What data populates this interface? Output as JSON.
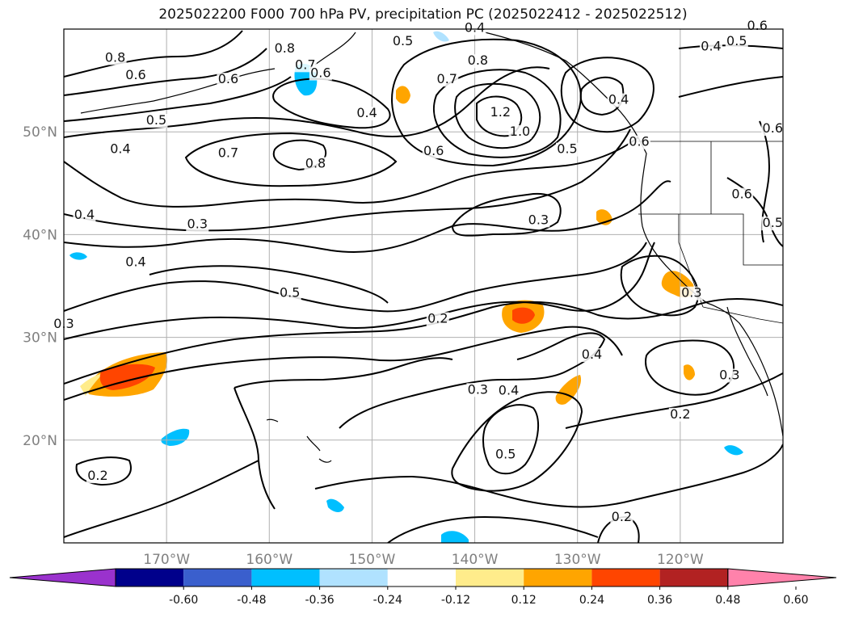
{
  "title": "2025022200 F000 700 hPa PV, precipitation PC (2025022412 - 2025022512)",
  "colors": {
    "contour": "#000000",
    "grid": "#b0b0b0",
    "axis_label": "#808080"
  },
  "chart_data": {
    "type": "contour-map",
    "title": "2025022200 F000 700 hPa PV, precipitation PC (2025022412 - 2025022512)",
    "projection": "PlateCarree",
    "extent": {
      "lon": [
        -180,
        -110
      ],
      "lat": [
        10,
        60
      ]
    },
    "lat_ticks": [
      20,
      30,
      40,
      50
    ],
    "lat_labels": [
      "20°N",
      "30°N",
      "40°N",
      "50°N"
    ],
    "lon_ticks": [
      -170,
      -160,
      -150,
      -140,
      -130,
      -120
    ],
    "lon_labels": [
      "170°W",
      "160°W",
      "150°W",
      "140°W",
      "130°W",
      "120°W"
    ],
    "grid": true,
    "contour_field": "700 hPa PV",
    "contour_labels": [
      {
        "text": "0.8",
        "lon": -175.0,
        "lat": 56.9
      },
      {
        "text": "0.6",
        "lon": -173.0,
        "lat": 55.2
      },
      {
        "text": "0.6",
        "lon": -164.0,
        "lat": 54.8
      },
      {
        "text": "0.8",
        "lon": -158.5,
        "lat": 57.8
      },
      {
        "text": "0.7",
        "lon": -156.5,
        "lat": 56.2
      },
      {
        "text": "0.6",
        "lon": -155.0,
        "lat": 55.4
      },
      {
        "text": "0.4",
        "lon": -150.5,
        "lat": 51.5
      },
      {
        "text": "0.5",
        "lon": -171.0,
        "lat": 50.8
      },
      {
        "text": "0.4",
        "lon": -174.5,
        "lat": 48.0
      },
      {
        "text": "0.7",
        "lon": -164.0,
        "lat": 47.6
      },
      {
        "text": "0.8",
        "lon": -155.5,
        "lat": 46.6
      },
      {
        "text": "0.5",
        "lon": -147.0,
        "lat": 58.5
      },
      {
        "text": "0.4",
        "lon": -140.0,
        "lat": 59.8
      },
      {
        "text": "0.7",
        "lon": -142.7,
        "lat": 54.8
      },
      {
        "text": "0.8",
        "lon": -139.7,
        "lat": 56.6
      },
      {
        "text": "1.2",
        "lon": -137.5,
        "lat": 51.6
      },
      {
        "text": "1.0",
        "lon": -135.6,
        "lat": 49.7
      },
      {
        "text": "0.6",
        "lon": -144.0,
        "lat": 47.8
      },
      {
        "text": "0.5",
        "lon": -131.0,
        "lat": 48.0
      },
      {
        "text": "0.4",
        "lon": -126.0,
        "lat": 52.8
      },
      {
        "text": "0.6",
        "lon": -124.0,
        "lat": 48.7
      },
      {
        "text": "0.4",
        "lon": -117.0,
        "lat": 58.0
      },
      {
        "text": "0.5",
        "lon": -114.5,
        "lat": 58.5
      },
      {
        "text": "0.6",
        "lon": -112.5,
        "lat": 60.0
      },
      {
        "text": "0.6",
        "lon": -111.0,
        "lat": 50.0
      },
      {
        "text": "0.6",
        "lon": -114.0,
        "lat": 43.6
      },
      {
        "text": "0.5",
        "lon": -111.0,
        "lat": 40.8
      },
      {
        "text": "0.4",
        "lon": -178.0,
        "lat": 41.6
      },
      {
        "text": "0.3",
        "lon": -167.0,
        "lat": 40.7
      },
      {
        "text": "0.4",
        "lon": -173.0,
        "lat": 37.0
      },
      {
        "text": "0.3",
        "lon": -180.0,
        "lat": 31.0
      },
      {
        "text": "0.5",
        "lon": -158.0,
        "lat": 34.0
      },
      {
        "text": "0.2",
        "lon": -143.6,
        "lat": 31.5
      },
      {
        "text": "0.3",
        "lon": -133.8,
        "lat": 41.1
      },
      {
        "text": "0.3",
        "lon": -118.9,
        "lat": 34.0
      },
      {
        "text": "0.4",
        "lon": -128.6,
        "lat": 28.0
      },
      {
        "text": "0.3",
        "lon": -139.7,
        "lat": 24.6
      },
      {
        "text": "0.4",
        "lon": -136.7,
        "lat": 24.5
      },
      {
        "text": "0.5",
        "lon": -137.0,
        "lat": 18.3
      },
      {
        "text": "0.2",
        "lon": -120.0,
        "lat": 22.2
      },
      {
        "text": "0.3",
        "lon": -115.2,
        "lat": 26.0
      },
      {
        "text": "0.2",
        "lon": -125.7,
        "lat": 12.2
      },
      {
        "text": "0.2",
        "lon": -176.7,
        "lat": 16.2
      }
    ],
    "shading_field": "precipitation PC (2025022412 - 2025022512)",
    "colorbar": {
      "ticks": [
        "-0.60",
        "-0.48",
        "-0.36",
        "-0.24",
        "-0.12",
        "0.12",
        "0.24",
        "0.36",
        "0.48",
        "0.60"
      ],
      "levels": [
        -0.6,
        -0.48,
        -0.36,
        -0.24,
        -0.12,
        0.12,
        0.24,
        0.36,
        0.48,
        0.6
      ],
      "colors": [
        "#9a32cd",
        "#00008b",
        "#3a5fcd",
        "#00bfff",
        "#b0e2ff",
        "#ffffff",
        "#ffec8b",
        "#ffa500",
        "#ff4500",
        "#b22222",
        "#ff82ab"
      ],
      "extend": "both"
    },
    "shaded_areas": [
      {
        "lon": -172.0,
        "lat": 28.4,
        "value": 0.24
      },
      {
        "lon": -172.5,
        "lat": 28.2,
        "value": 0.36
      },
      {
        "lon": -134.5,
        "lat": 32.0,
        "value": 0.36
      },
      {
        "lon": -119.5,
        "lat": 35.3,
        "value": 0.24
      },
      {
        "lon": -130.2,
        "lat": 24.8,
        "value": 0.24
      },
      {
        "lon": -126.0,
        "lat": 41.5,
        "value": 0.24
      },
      {
        "lon": -116.5,
        "lat": 27.0,
        "value": 0.24
      },
      {
        "lon": -148.0,
        "lat": 54.5,
        "value": 0.24
      },
      {
        "lon": -157.5,
        "lat": 55.0,
        "value": -0.24
      },
      {
        "lon": -169.0,
        "lat": 20.0,
        "value": -0.24
      },
      {
        "lon": -152.5,
        "lat": 14.4,
        "value": -0.24
      },
      {
        "lon": -143.0,
        "lat": 10.4,
        "value": -0.24
      }
    ]
  }
}
